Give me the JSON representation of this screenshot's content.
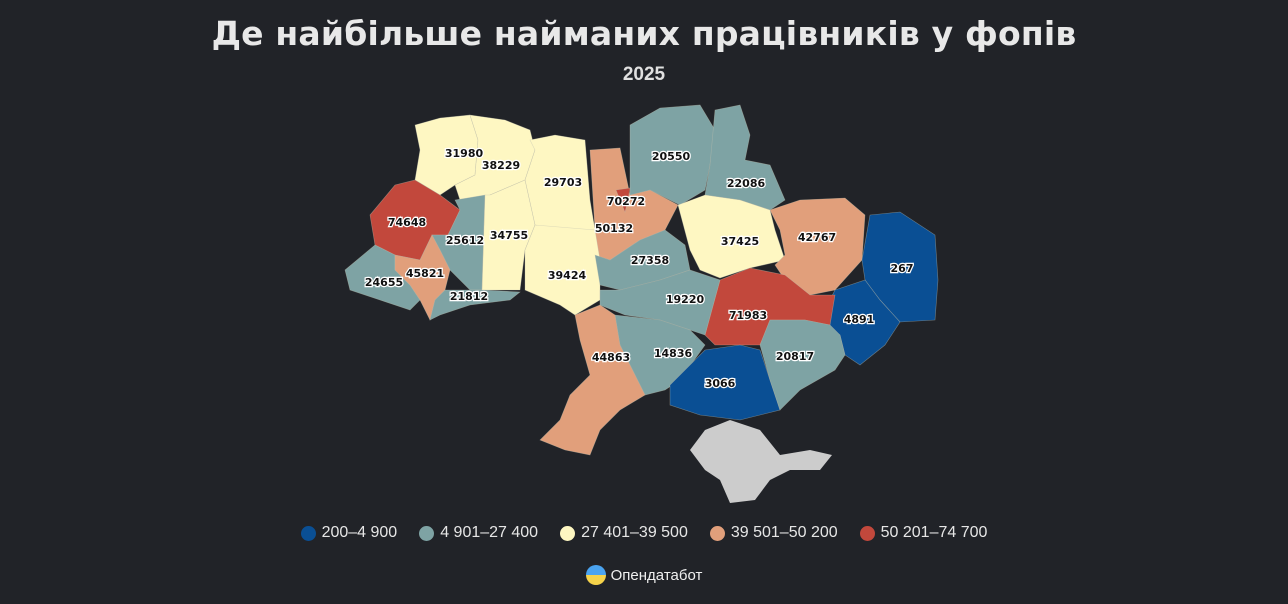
{
  "title": "Де найбільше найманих працівників у фопів",
  "subtitle": "2025",
  "colors": {
    "c1": "#0a4f94",
    "c2": "#7ea3a4",
    "c3": "#fef7c2",
    "c4": "#e19f7b",
    "c5": "#c2483c",
    "no_data": "#cccccc",
    "background": "#212328"
  },
  "legend": [
    {
      "label": "200–4 900",
      "color": "#0a4f94"
    },
    {
      "label": "4 901–27 400",
      "color": "#7ea3a4"
    },
    {
      "label": "27 401–39 500",
      "color": "#fef7c2"
    },
    {
      "label": "39 501–50 200",
      "color": "#e19f7b"
    },
    {
      "label": "50 201–74 700",
      "color": "#c2483c"
    }
  ],
  "regions": [
    {
      "value": "31980",
      "cls": "c3"
    },
    {
      "value": "38229",
      "cls": "c3"
    },
    {
      "value": "29703",
      "cls": "c3"
    },
    {
      "value": "50132",
      "cls": "c4"
    },
    {
      "value": "20550",
      "cls": "c2"
    },
    {
      "value": "22086",
      "cls": "c2"
    },
    {
      "value": "74648",
      "cls": "c5"
    },
    {
      "value": "25612",
      "cls": "c2"
    },
    {
      "value": "34755",
      "cls": "c3"
    },
    {
      "value": "39424",
      "cls": "c3"
    },
    {
      "value": "24655",
      "cls": "c2"
    },
    {
      "value": "45821",
      "cls": "c4"
    },
    {
      "value": "21812",
      "cls": "c2"
    },
    {
      "value": "27358",
      "cls": "c2"
    },
    {
      "value": "37425",
      "cls": "c3"
    },
    {
      "value": "42767",
      "cls": "c4"
    },
    {
      "value": "267",
      "cls": "c1"
    },
    {
      "value": "4891",
      "cls": "c1"
    },
    {
      "value": "71983",
      "cls": "c5"
    },
    {
      "value": "19220",
      "cls": "c2"
    },
    {
      "value": "14836",
      "cls": "c2"
    },
    {
      "value": "44863",
      "cls": "c4"
    },
    {
      "value": "3066",
      "cls": "c1"
    },
    {
      "value": "20817",
      "cls": "c2"
    },
    {
      "value": "70272",
      "cls": "c5"
    }
  ],
  "brand": "Опендатабот"
}
